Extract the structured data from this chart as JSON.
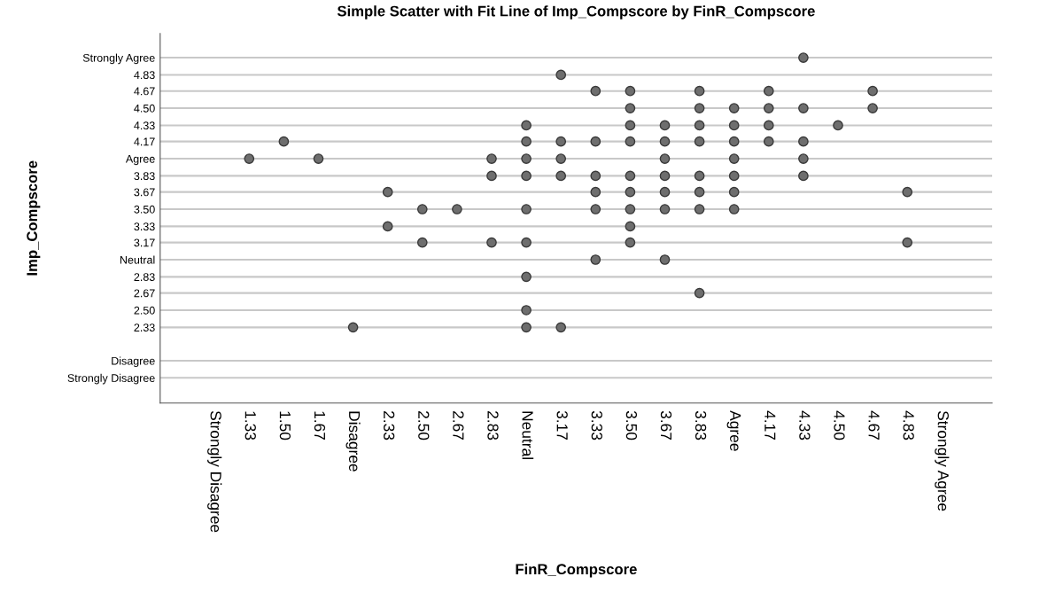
{
  "chart_data": {
    "type": "scatter",
    "title": "Simple Scatter with Fit Line of Imp_Compscore by FinR_Compscore",
    "xlabel": "FinR_Compscore",
    "ylabel": "Imp_Compscore",
    "categories": [
      "Strongly Disagree",
      "1.33",
      "1.50",
      "1.67",
      "Disagree",
      "2.33",
      "2.50",
      "2.67",
      "2.83",
      "Neutral",
      "3.17",
      "3.33",
      "3.50",
      "3.67",
      "3.83",
      "Agree",
      "4.17",
      "4.33",
      "4.50",
      "4.67",
      "4.83",
      "Strongly Agree"
    ],
    "ylim": [
      1.58,
      5.24
    ],
    "yticks": [
      {
        "value": 5,
        "label": "Strongly Agree"
      },
      {
        "value": 4.83,
        "label": "4.83"
      },
      {
        "value": 4.67,
        "label": "4.67"
      },
      {
        "value": 4.5,
        "label": "4.50"
      },
      {
        "value": 4.33,
        "label": "4.33"
      },
      {
        "value": 4.17,
        "label": "4.17"
      },
      {
        "value": 4,
        "label": "Agree"
      },
      {
        "value": 3.83,
        "label": "3.83"
      },
      {
        "value": 3.67,
        "label": "3.67"
      },
      {
        "value": 3.5,
        "label": "3.50"
      },
      {
        "value": 3.33,
        "label": "3.33"
      },
      {
        "value": 3.17,
        "label": "3.17"
      },
      {
        "value": 3,
        "label": "Neutral"
      },
      {
        "value": 2.83,
        "label": "2.83"
      },
      {
        "value": 2.67,
        "label": "2.67"
      },
      {
        "value": 2.5,
        "label": "2.50"
      },
      {
        "value": 2.33,
        "label": "2.33"
      },
      {
        "value": 2,
        "label": "Disagree"
      },
      {
        "value": 1.83,
        "label": "Strongly Disagree"
      }
    ],
    "grid": "y",
    "marker": "circle",
    "series": [
      {
        "color": "#6e6e6e",
        "x": [
          "4.33",
          "3.17",
          "3.33",
          "3.50",
          "3.83",
          "4.17",
          "4.67",
          "3.50",
          "3.83",
          "Agree",
          "4.17",
          "4.33",
          "4.67",
          "Neutral",
          "3.50",
          "3.67",
          "3.83",
          "Agree",
          "4.17",
          "4.50",
          "1.50",
          "Neutral",
          "3.17",
          "3.33",
          "3.50",
          "3.67",
          "3.83",
          "Agree",
          "4.17",
          "4.33",
          "1.33",
          "1.67",
          "2.83",
          "Neutral",
          "3.17",
          "3.67",
          "Agree",
          "4.33",
          "2.83",
          "Neutral",
          "3.17",
          "3.33",
          "3.50",
          "3.67",
          "3.83",
          "Agree",
          "4.33",
          "2.33",
          "3.33",
          "3.50",
          "3.67",
          "3.83",
          "Agree",
          "4.83",
          "2.50",
          "2.67",
          "Neutral",
          "3.33",
          "3.50",
          "3.67",
          "3.83",
          "Agree",
          "2.33",
          "3.50",
          "2.50",
          "2.83",
          "Neutral",
          "3.50",
          "4.83",
          "3.33",
          "3.67",
          "Neutral",
          "3.83",
          "Neutral",
          "Disagree",
          "Neutral",
          "3.17"
        ],
        "values": [
          5,
          4.83,
          4.67,
          4.67,
          4.67,
          4.67,
          4.67,
          4.5,
          4.5,
          4.5,
          4.5,
          4.5,
          4.5,
          4.33,
          4.33,
          4.33,
          4.33,
          4.33,
          4.33,
          4.33,
          4.17,
          4.17,
          4.17,
          4.17,
          4.17,
          4.17,
          4.17,
          4.17,
          4.17,
          4.17,
          4,
          4,
          4,
          4,
          4,
          4,
          4,
          4,
          3.83,
          3.83,
          3.83,
          3.83,
          3.83,
          3.83,
          3.83,
          3.83,
          3.83,
          3.67,
          3.67,
          3.67,
          3.67,
          3.67,
          3.67,
          3.67,
          3.5,
          3.5,
          3.5,
          3.5,
          3.5,
          3.5,
          3.5,
          3.5,
          3.33,
          3.33,
          3.17,
          3.17,
          3.17,
          3.17,
          3.17,
          3,
          3,
          2.83,
          2.67,
          2.5,
          2.33,
          2.33,
          2.33
        ]
      }
    ]
  }
}
